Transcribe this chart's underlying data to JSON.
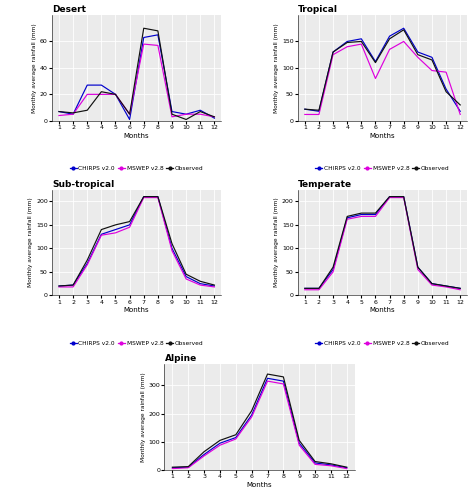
{
  "months": [
    1,
    2,
    3,
    4,
    5,
    6,
    7,
    8,
    9,
    10,
    11,
    12
  ],
  "desert": {
    "chirps": [
      7,
      5,
      27,
      27,
      20,
      1,
      63,
      65,
      7,
      5,
      8,
      2
    ],
    "mswep": [
      4,
      5,
      20,
      20,
      20,
      5,
      58,
      57,
      3,
      5,
      5,
      3
    ],
    "observed": [
      7,
      6,
      8,
      22,
      20,
      5,
      70,
      68,
      5,
      1,
      7,
      3
    ]
  },
  "tropical": {
    "chirps": [
      22,
      18,
      130,
      150,
      155,
      112,
      160,
      175,
      130,
      120,
      60,
      18
    ],
    "mswep": [
      12,
      12,
      125,
      140,
      145,
      80,
      135,
      150,
      120,
      95,
      92,
      12
    ],
    "observed": [
      22,
      20,
      130,
      148,
      150,
      110,
      155,
      172,
      125,
      115,
      55,
      30
    ]
  },
  "subtropical": {
    "chirps": [
      20,
      22,
      68,
      130,
      140,
      150,
      210,
      210,
      100,
      40,
      25,
      20
    ],
    "mswep": [
      18,
      18,
      65,
      128,
      133,
      145,
      208,
      208,
      95,
      35,
      22,
      18
    ],
    "observed": [
      20,
      22,
      75,
      140,
      150,
      157,
      210,
      210,
      110,
      45,
      30,
      22
    ]
  },
  "temperate": {
    "chirps": [
      15,
      15,
      55,
      165,
      172,
      172,
      210,
      210,
      60,
      25,
      20,
      15
    ],
    "mswep": [
      12,
      12,
      50,
      162,
      168,
      168,
      208,
      208,
      55,
      22,
      18,
      12
    ],
    "observed": [
      15,
      15,
      60,
      168,
      175,
      175,
      210,
      210,
      60,
      25,
      20,
      15
    ]
  },
  "alpine": {
    "chirps": [
      8,
      10,
      55,
      95,
      115,
      195,
      325,
      315,
      95,
      25,
      18,
      8
    ],
    "mswep": [
      5,
      8,
      50,
      88,
      110,
      188,
      315,
      305,
      88,
      20,
      15,
      5
    ],
    "observed": [
      10,
      12,
      65,
      105,
      125,
      210,
      340,
      330,
      105,
      30,
      22,
      10
    ]
  },
  "colors": {
    "chirps": "#0000cc",
    "mswep": "#dd00dd",
    "observed": "#111111"
  },
  "titles": [
    "Desert",
    "Tropical",
    "Sub-tropical",
    "Temperate",
    "Alpine"
  ],
  "ylabel": "Monthly average rainfall (mm)",
  "xlabel": "Months",
  "legend_labels": [
    "CHIRPS v2.0",
    "MSWEP v2.8",
    "Observed"
  ],
  "ylims": {
    "desert": [
      0,
      80
    ],
    "tropical": [
      0,
      200
    ],
    "subtropical": [
      0,
      225
    ],
    "temperate": [
      0,
      225
    ],
    "alpine": [
      0,
      375
    ]
  },
  "yticks": {
    "desert": [
      0,
      20,
      40,
      60
    ],
    "tropical": [
      0,
      50,
      100,
      150
    ],
    "subtropical": [
      0,
      50,
      100,
      150,
      200
    ],
    "temperate": [
      0,
      50,
      100,
      150,
      200
    ],
    "alpine": [
      0,
      100,
      200,
      300
    ]
  }
}
